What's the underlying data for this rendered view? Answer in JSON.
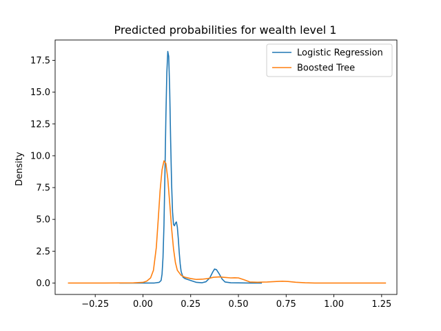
{
  "chart_data": {
    "type": "line",
    "title": "Predicted probabilities for wealth level 1",
    "xlabel": "",
    "ylabel": "Density",
    "xlim": [
      -0.46,
      1.33
    ],
    "ylim": [
      -0.9,
      19.1
    ],
    "xticks": [
      -0.25,
      0.0,
      0.25,
      0.5,
      0.75,
      1.0,
      1.25
    ],
    "xtick_labels": [
      "−0.25",
      "0.00",
      "0.25",
      "0.50",
      "0.75",
      "1.00",
      "1.25"
    ],
    "yticks": [
      0.0,
      2.5,
      5.0,
      7.5,
      10.0,
      12.5,
      15.0,
      17.5
    ],
    "ytick_labels": [
      "0.0",
      "2.5",
      "5.0",
      "7.5",
      "10.0",
      "12.5",
      "15.0",
      "17.5"
    ],
    "grid": false,
    "legend_position": "top-right",
    "series": [
      {
        "name": "Logistic Regression",
        "color": "#1f77b4",
        "points": [
          [
            -0.12,
            0.0
          ],
          [
            0.0,
            0.0
          ],
          [
            0.06,
            0.0
          ],
          [
            0.085,
            0.05
          ],
          [
            0.095,
            0.2
          ],
          [
            0.1,
            0.7
          ],
          [
            0.105,
            2.0
          ],
          [
            0.11,
            4.5
          ],
          [
            0.115,
            8.5
          ],
          [
            0.12,
            13.0
          ],
          [
            0.125,
            16.5
          ],
          [
            0.13,
            18.2
          ],
          [
            0.135,
            17.8
          ],
          [
            0.14,
            15.2
          ],
          [
            0.145,
            11.2
          ],
          [
            0.15,
            7.8
          ],
          [
            0.155,
            5.6
          ],
          [
            0.16,
            4.6
          ],
          [
            0.165,
            4.5
          ],
          [
            0.17,
            4.7
          ],
          [
            0.175,
            4.8
          ],
          [
            0.18,
            4.4
          ],
          [
            0.185,
            3.5
          ],
          [
            0.19,
            2.4
          ],
          [
            0.195,
            1.5
          ],
          [
            0.2,
            0.9
          ],
          [
            0.21,
            0.45
          ],
          [
            0.22,
            0.35
          ],
          [
            0.23,
            0.3
          ],
          [
            0.25,
            0.2
          ],
          [
            0.28,
            0.05
          ],
          [
            0.31,
            0.02
          ],
          [
            0.33,
            0.1
          ],
          [
            0.35,
            0.4
          ],
          [
            0.365,
            0.85
          ],
          [
            0.375,
            1.1
          ],
          [
            0.385,
            1.05
          ],
          [
            0.4,
            0.7
          ],
          [
            0.415,
            0.3
          ],
          [
            0.43,
            0.08
          ],
          [
            0.46,
            0.02
          ],
          [
            0.5,
            0.01
          ],
          [
            0.56,
            0.0
          ],
          [
            0.62,
            0.0
          ]
        ]
      },
      {
        "name": "Boosted Tree",
        "color": "#ff7f0e",
        "points": [
          [
            -0.39,
            0.0
          ],
          [
            -0.2,
            0.0
          ],
          [
            -0.05,
            0.01
          ],
          [
            0.0,
            0.05
          ],
          [
            0.02,
            0.15
          ],
          [
            0.04,
            0.4
          ],
          [
            0.055,
            1.0
          ],
          [
            0.07,
            2.8
          ],
          [
            0.08,
            5.0
          ],
          [
            0.09,
            7.3
          ],
          [
            0.1,
            8.9
          ],
          [
            0.11,
            9.6
          ],
          [
            0.12,
            9.4
          ],
          [
            0.13,
            8.2
          ],
          [
            0.14,
            6.3
          ],
          [
            0.15,
            4.3
          ],
          [
            0.16,
            2.7
          ],
          [
            0.17,
            1.6
          ],
          [
            0.18,
            1.0
          ],
          [
            0.2,
            0.6
          ],
          [
            0.22,
            0.45
          ],
          [
            0.25,
            0.35
          ],
          [
            0.28,
            0.28
          ],
          [
            0.31,
            0.3
          ],
          [
            0.34,
            0.35
          ],
          [
            0.37,
            0.45
          ],
          [
            0.4,
            0.48
          ],
          [
            0.43,
            0.44
          ],
          [
            0.46,
            0.4
          ],
          [
            0.48,
            0.41
          ],
          [
            0.5,
            0.4
          ],
          [
            0.53,
            0.25
          ],
          [
            0.56,
            0.08
          ],
          [
            0.6,
            0.06
          ],
          [
            0.65,
            0.08
          ],
          [
            0.7,
            0.12
          ],
          [
            0.73,
            0.14
          ],
          [
            0.76,
            0.12
          ],
          [
            0.8,
            0.06
          ],
          [
            0.85,
            0.02
          ],
          [
            0.9,
            0.0
          ],
          [
            1.0,
            0.0
          ],
          [
            1.1,
            0.0
          ],
          [
            1.27,
            0.0
          ]
        ]
      }
    ]
  }
}
